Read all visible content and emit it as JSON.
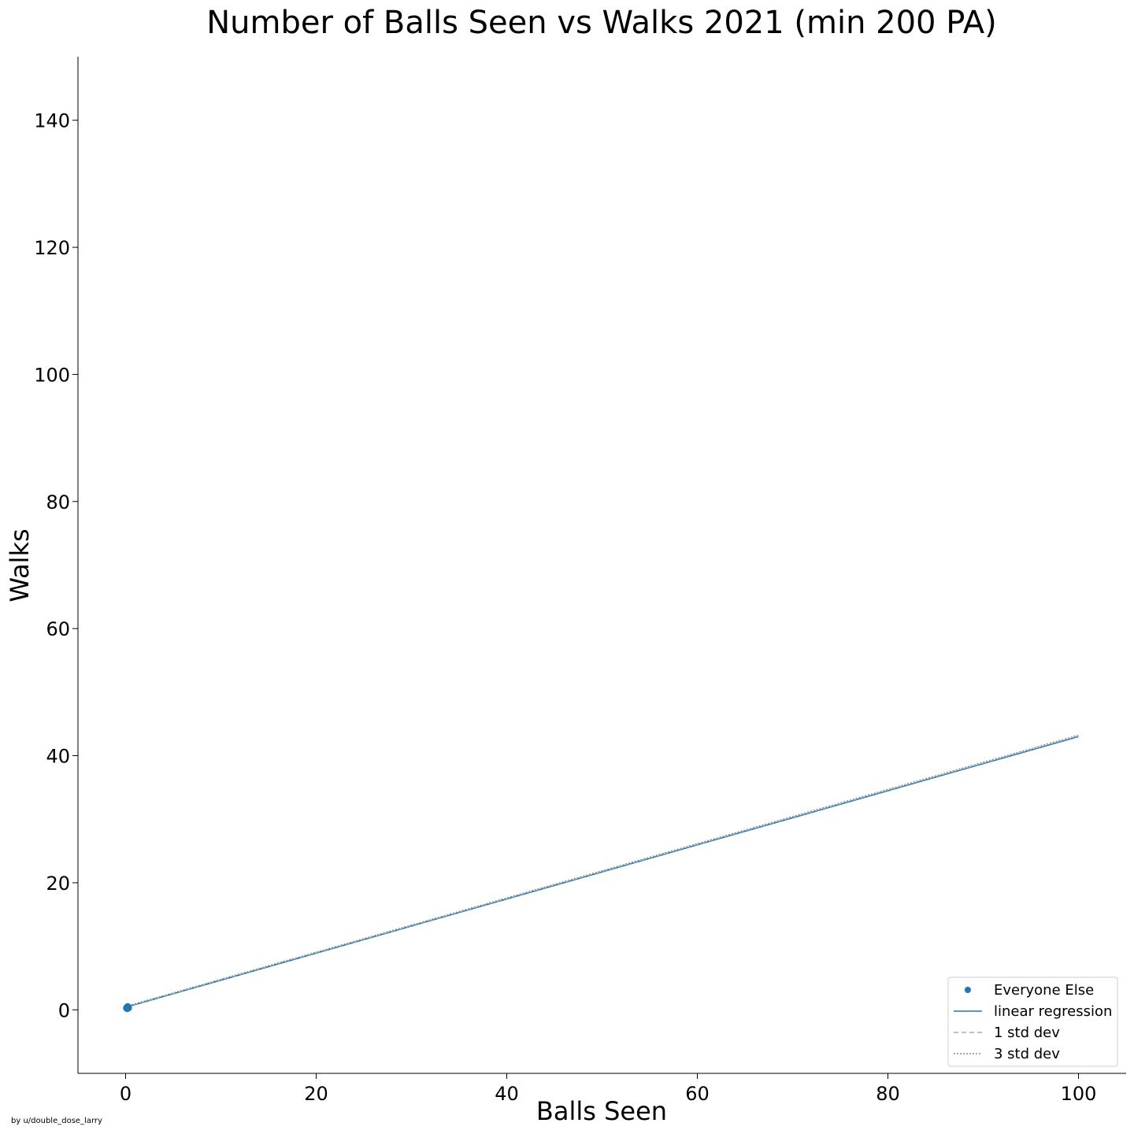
{
  "chart_data": {
    "type": "scatter",
    "title": "Number of Balls Seen vs Walks 2021 (min 200 PA)",
    "xlabel": "Balls Seen",
    "ylabel": "Walks",
    "xlim": [
      -5,
      105
    ],
    "ylim": [
      -10,
      150
    ],
    "xticks": [
      0,
      20,
      40,
      60,
      80,
      100
    ],
    "yticks": [
      0,
      20,
      40,
      60,
      80,
      100,
      120,
      140
    ],
    "grid": false,
    "legend_position": "bottom-right",
    "series": [
      {
        "name": "Everyone Else",
        "kind": "scatter",
        "color": "#1f77b4",
        "points": [
          [
            0.1,
            0.3
          ],
          [
            0.2,
            0.4
          ],
          [
            0.15,
            0.35
          ],
          [
            0.25,
            0.45
          ],
          [
            0.12,
            0.25
          ],
          [
            0.3,
            0.3
          ],
          [
            0.22,
            0.5
          ],
          [
            0.18,
            0.2
          ]
        ]
      },
      {
        "name": "linear regression",
        "kind": "line",
        "color": "#1f77b4",
        "dash": "solid",
        "x": [
          0,
          100
        ],
        "y": [
          0.4,
          43
        ]
      },
      {
        "name": "1 std dev",
        "kind": "line",
        "color": "#aaaaaa",
        "dash": "dashed",
        "x": [
          0,
          100
        ],
        "y": [
          0.45,
          43.1
        ]
      },
      {
        "name": "3 std dev",
        "kind": "line",
        "color": "#888888",
        "dash": "dotted",
        "x": [
          0,
          100
        ],
        "y": [
          0.55,
          43.25
        ]
      }
    ]
  },
  "credit": "by u/double_dose_larry"
}
